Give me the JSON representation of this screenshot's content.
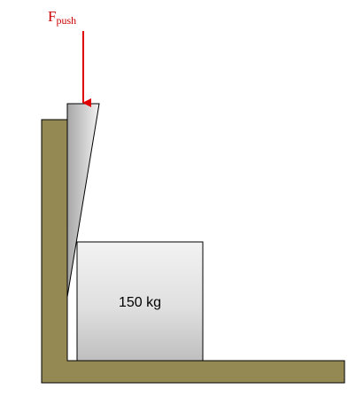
{
  "force": {
    "symbol": "F",
    "subscript": "push"
  },
  "block": {
    "mass_label": "150 kg"
  },
  "colors": {
    "wall_fill": "#958953",
    "outline": "#000000",
    "force_arrow": "#e00000",
    "force_text": "#cc0000",
    "block_gradient_top": "#f2f2f2",
    "block_gradient_bottom": "#bfbfbf",
    "wedge_gradient_left": "#a6a6a6",
    "wedge_gradient_right": "#f2f2f2"
  }
}
